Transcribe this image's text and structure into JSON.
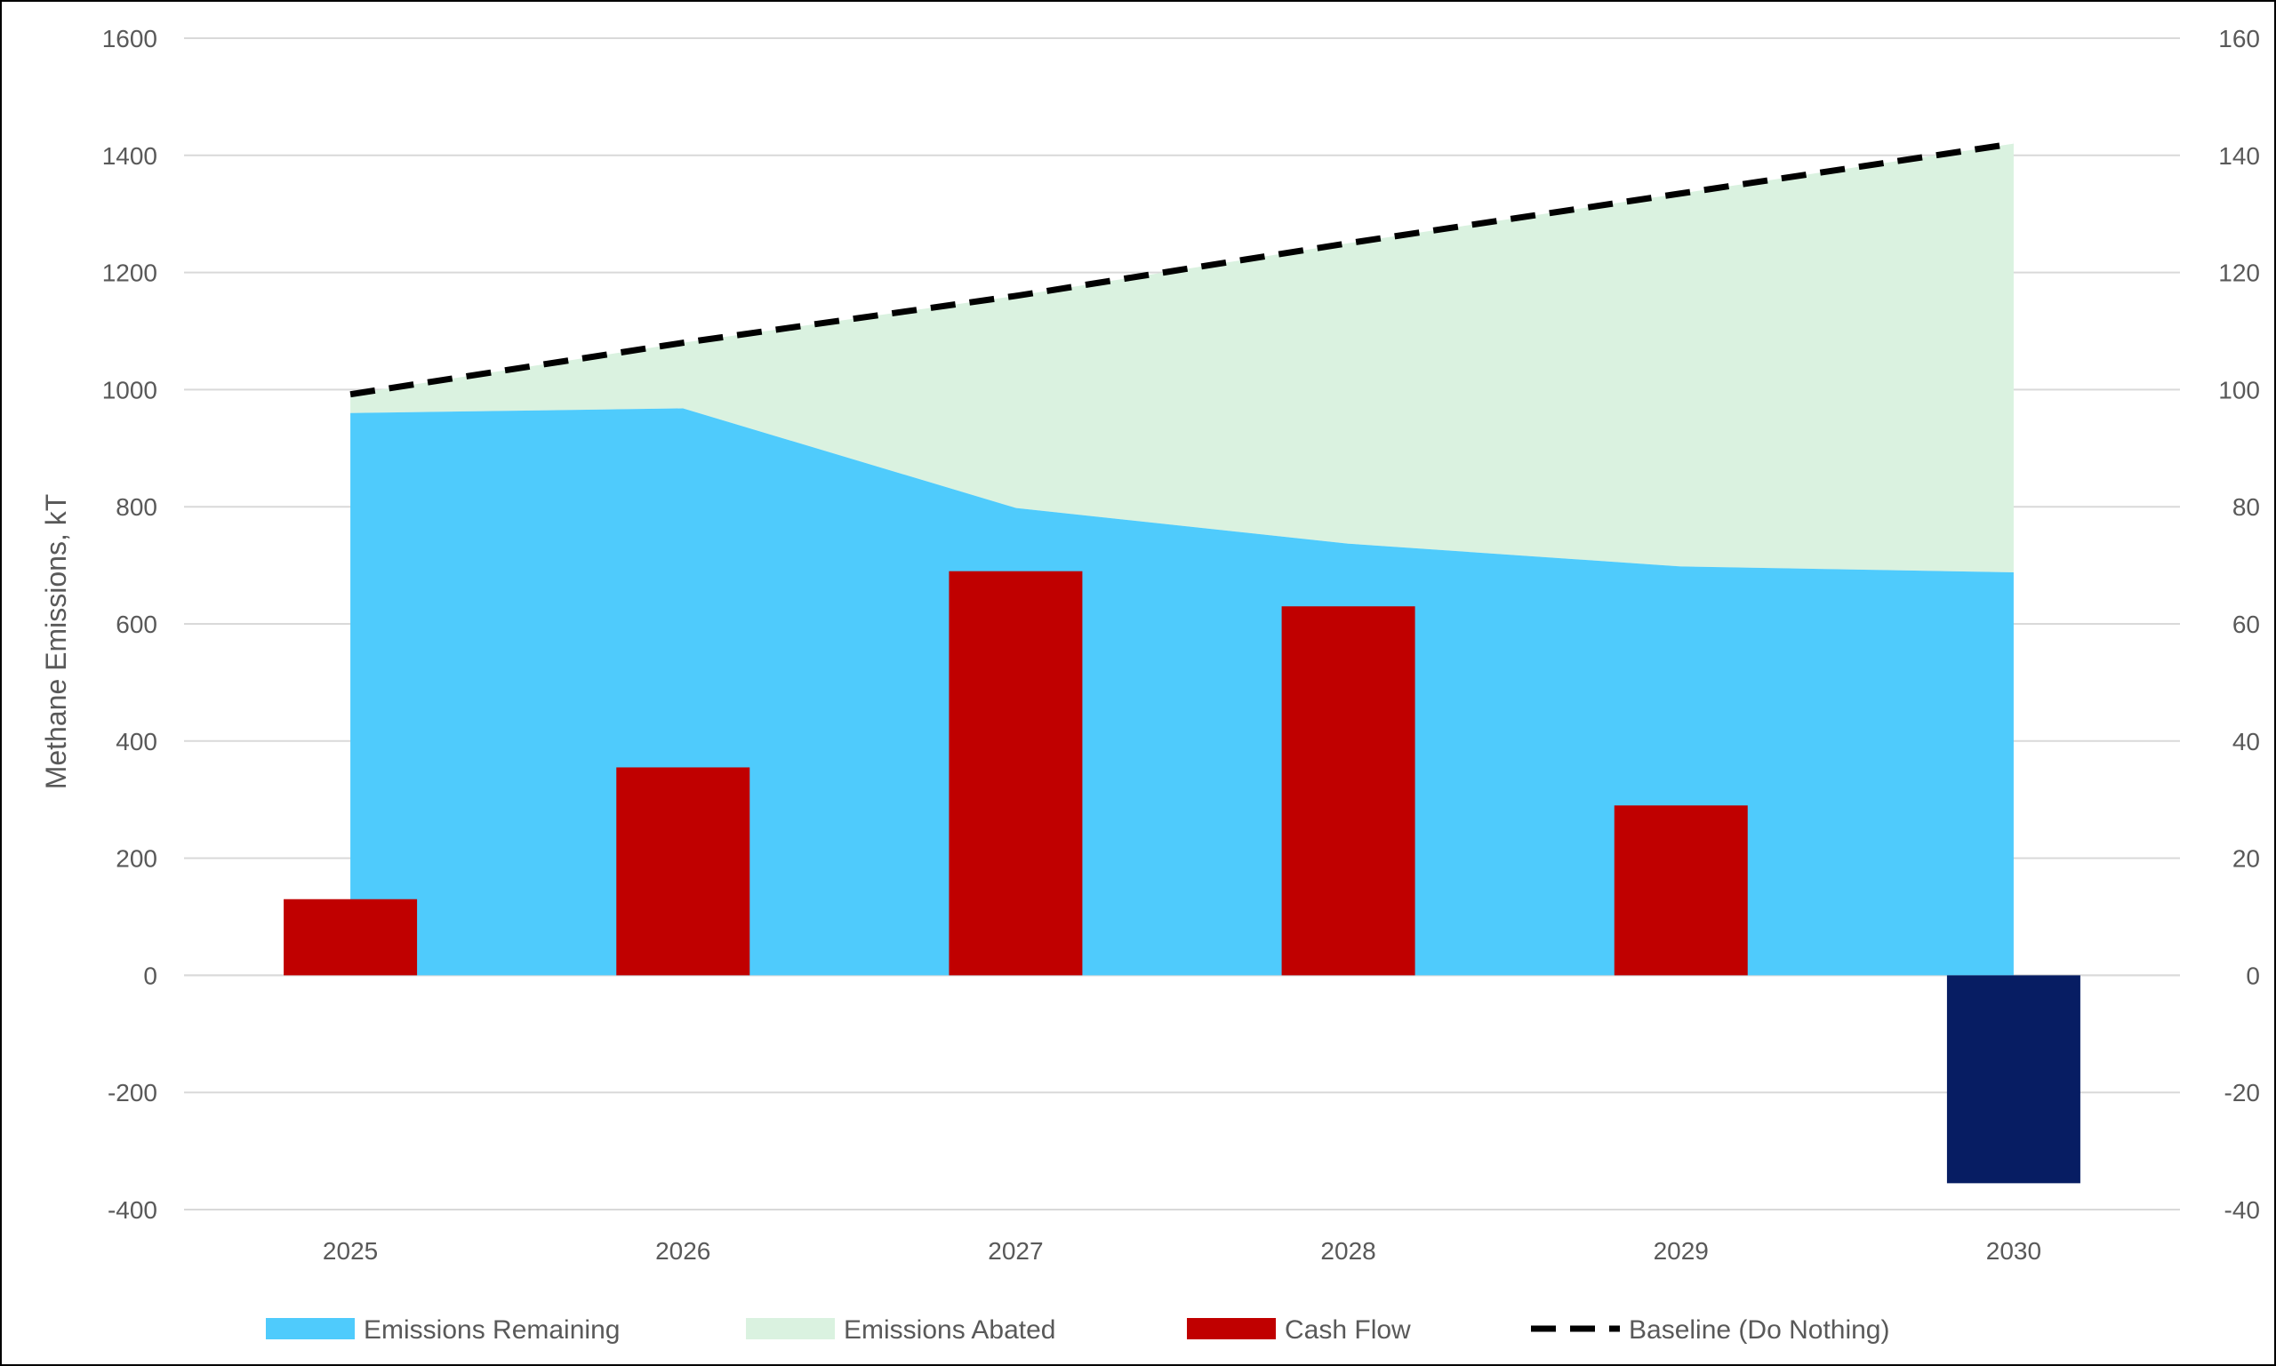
{
  "chart_data": {
    "type": "combo",
    "categories": [
      "2025",
      "2026",
      "2027",
      "2028",
      "2029",
      "2030"
    ],
    "primary_axis": {
      "label": "Methane Emissions, kT",
      "ylim": [
        -400,
        1600
      ],
      "ticks": [
        -400,
        -200,
        0,
        200,
        400,
        600,
        800,
        1000,
        1200,
        1400,
        1600
      ]
    },
    "secondary_axis": {
      "label": "",
      "ylim": [
        -40,
        160
      ],
      "ticks": [
        -40,
        -20,
        0,
        20,
        40,
        60,
        80,
        100,
        120,
        140,
        160
      ]
    },
    "series": [
      {
        "name": "Emissions Remaining",
        "type": "stacked-area",
        "axis": "primary",
        "color": "#4FCBFC",
        "values": [
          960,
          968,
          798,
          737,
          698,
          688
        ]
      },
      {
        "name": "Emissions Abated",
        "type": "stacked-area",
        "axis": "primary",
        "color": "#DAF2E0",
        "values": [
          32,
          112,
          362,
          513,
          637,
          732
        ]
      },
      {
        "name": "Cash Flow",
        "type": "bar",
        "axis": "secondary",
        "color": "#C00000",
        "negative_color": "#071D63",
        "values": [
          13,
          35.5,
          69,
          63,
          29,
          -35.5
        ]
      },
      {
        "name": "Baseline (Do Nothing)",
        "type": "line",
        "axis": "primary",
        "style": "dashed",
        "color": "#000000",
        "values": [
          992,
          1080,
          1160,
          1250,
          1335,
          1420
        ]
      }
    ],
    "gridlines": true,
    "legend_position": "bottom"
  }
}
